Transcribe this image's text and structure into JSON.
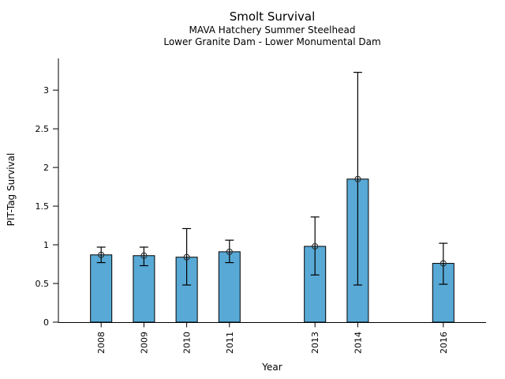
{
  "chart_data": {
    "type": "bar",
    "title": "Smolt Survival",
    "subtitle1": "MAVA Hatchery Summer Steelhead",
    "subtitle2": "Lower Granite Dam - Lower Monumental Dam",
    "xlabel": "Year",
    "ylabel": "PIT-Tag Survival",
    "categories": [
      "2008",
      "2009",
      "2010",
      "2011",
      "2013",
      "2014",
      "2016"
    ],
    "values": [
      0.87,
      0.86,
      0.84,
      0.91,
      0.98,
      1.85,
      0.76
    ],
    "error_low": [
      0.77,
      0.73,
      0.48,
      0.77,
      0.61,
      0.48,
      0.49
    ],
    "error_high": [
      0.97,
      0.97,
      1.21,
      1.06,
      1.36,
      3.23,
      1.02
    ],
    "missing_years": [
      "2012",
      "2015"
    ],
    "yticks": [
      0,
      0.5,
      1,
      1.5,
      2,
      2.5,
      3
    ],
    "ylim": [
      0,
      3.41
    ],
    "xlim": [
      2007,
      2017
    ],
    "grid": false,
    "legend": "none",
    "marker": "open-circle",
    "bar_color": "#58A9D6",
    "bar_edge_color": "#000000",
    "errorbar_color": "#000000",
    "marker_edge_color": "#2b2b2b",
    "background_color": "#ffffff",
    "text_color": "#000000"
  }
}
